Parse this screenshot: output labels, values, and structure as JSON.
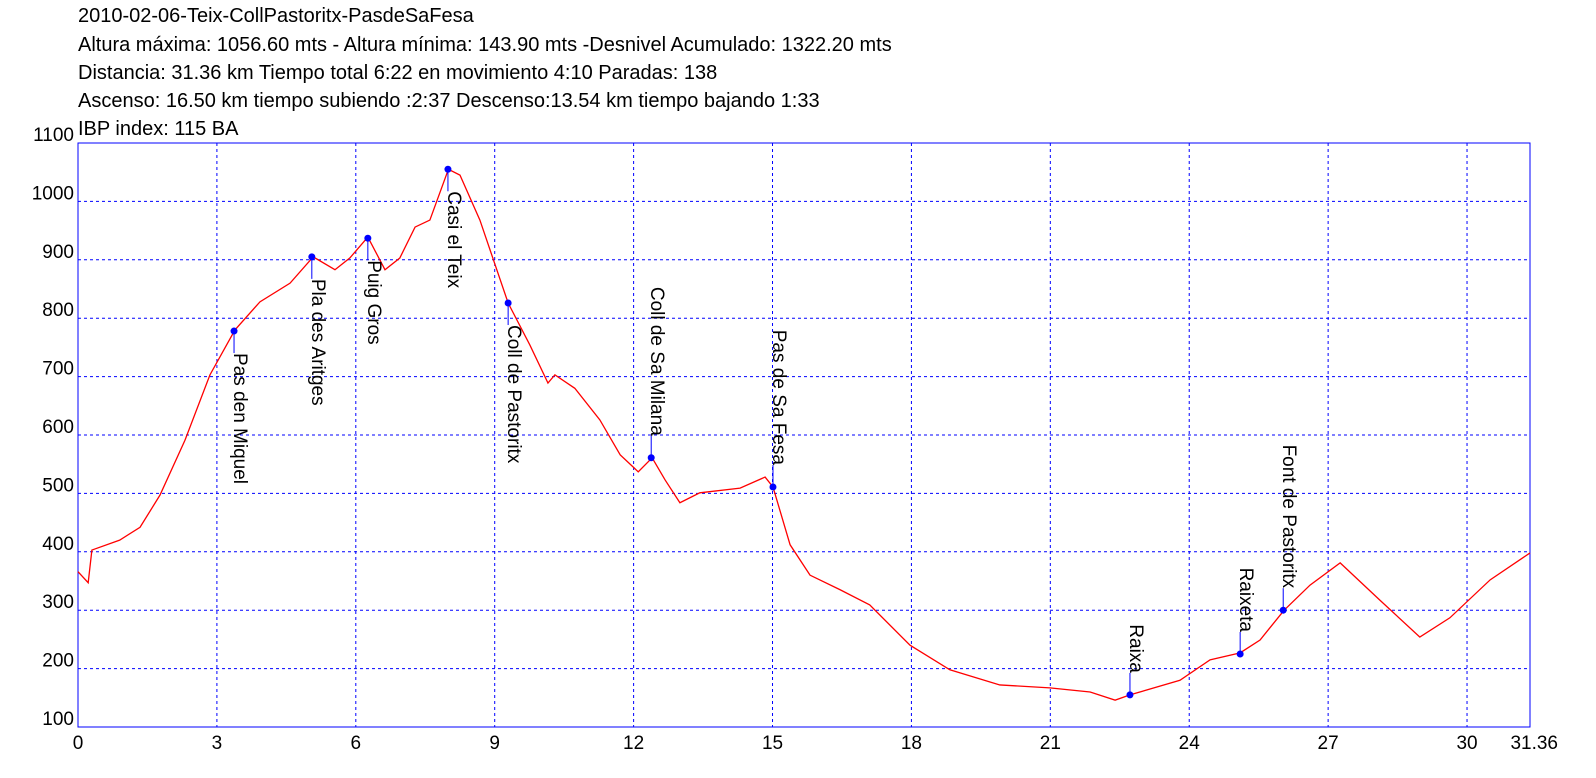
{
  "chart_data": {
    "type": "line",
    "title": "2010-02-06-Teix-CollPastoritx-PasdeSaFesa",
    "info_lines": [
      "Altura máxima: 1056.60 mts - Altura mínima: 143.90 mts -Desnivel Acumulado: 1322.20 mts",
      "Distancia: 31.36 km  Tiempo total 6:22  en movimiento 4:10 Paradas: 138",
      "Ascenso: 16.50 km  tiempo subiendo :2:37  Descenso:13.54 km tiempo bajando 1:33",
      "IBP index: 115 BA"
    ],
    "x": [
      0,
      0.22,
      0.3,
      0.9,
      1.34,
      1.77,
      2.31,
      2.85,
      3.39,
      3.93,
      4.58,
      5.08,
      5.55,
      5.87,
      6.26,
      6.63,
      6.95,
      7.28,
      7.6,
      8.0,
      8.25,
      8.68,
      9.29,
      9.76,
      10.15,
      10.3,
      10.73,
      11.27,
      11.71,
      12.1,
      12.4,
      12.68,
      13.0,
      13.43,
      14.3,
      14.84,
      15.01,
      15.38,
      15.81,
      16.46,
      17.1,
      17.97,
      18.83,
      19.91,
      20.99,
      21.86,
      22.4,
      22.72,
      23.8,
      24.45,
      25.1,
      25.53,
      26.05,
      26.61,
      27.26,
      28.12,
      28.98,
      29.63,
      30.5,
      31.36
    ],
    "series": [
      {
        "color": "#ff0000",
        "values": [
          366,
          347,
          403,
          420,
          442,
          497,
          591,
          703,
          780,
          828,
          860,
          905,
          883,
          903,
          939,
          883,
          903,
          956,
          968,
          1055,
          1045,
          968,
          826,
          754,
          689,
          703,
          680,
          626,
          566,
          537,
          561,
          523,
          484,
          501,
          509,
          528,
          511,
          412,
          360,
          335,
          309,
          240,
          198,
          172,
          167,
          160,
          146,
          155,
          180,
          215,
          227,
          249,
          300,
          343,
          381,
          317,
          254,
          287,
          352,
          398
        ]
      }
    ],
    "waypoints": [
      {
        "name": "Pas den Miquel",
        "distance": 3.37,
        "elevation": 778
      },
      {
        "name": "Pla des Aritges",
        "distance": 5.05,
        "elevation": 905
      },
      {
        "name": "Puig Gros",
        "distance": 6.26,
        "elevation": 937
      },
      {
        "name": "Casi el Teix",
        "distance": 7.99,
        "elevation": 1055
      },
      {
        "name": "Coll de Pastoritx",
        "distance": 9.29,
        "elevation": 826
      },
      {
        "name": "Coll de Sa Milana",
        "distance": 12.38,
        "elevation": 561
      },
      {
        "name": "Pas de Sa Fesa",
        "distance": 15.01,
        "elevation": 511
      },
      {
        "name": "Raixa",
        "distance": 22.72,
        "elevation": 155
      },
      {
        "name": "Raixeta",
        "distance": 25.1,
        "elevation": 225
      },
      {
        "name": "Font de Pastoritx",
        "distance": 26.03,
        "elevation": 300
      }
    ],
    "waypoint_color": "#0000ff",
    "xlim": [
      0,
      31.36
    ],
    "xticks": [
      0,
      3,
      6,
      9,
      12,
      15,
      18,
      21,
      24,
      27,
      30,
      31.36
    ],
    "ylim": [
      100,
      1100
    ],
    "yticks": [
      100,
      200,
      300,
      400,
      500,
      600,
      700,
      800,
      900,
      1000,
      1100
    ],
    "grid": true,
    "frame_color": "#0000ff"
  }
}
